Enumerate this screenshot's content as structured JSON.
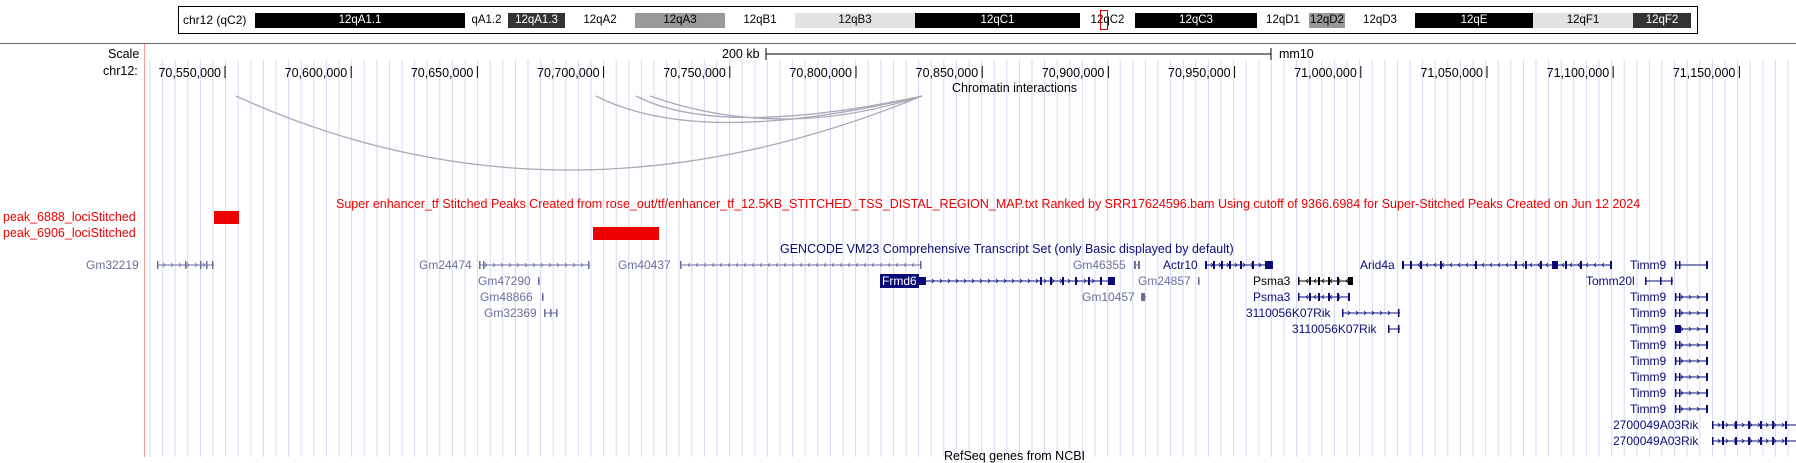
{
  "ideogram": {
    "label": "chr12 (qC2)",
    "bands": [
      {
        "name": "12qA1.1",
        "style": "black"
      },
      {
        "name": "qA1.2",
        "style": "white"
      },
      {
        "name": "12qA1.3",
        "style": "dark"
      },
      {
        "name": "12qA2",
        "style": "white"
      },
      {
        "name": "12qA3",
        "style": "gray"
      },
      {
        "name": "12qB1",
        "style": "white"
      },
      {
        "name": "12qB3",
        "style": "light"
      },
      {
        "name": "12qC1",
        "style": "black"
      },
      {
        "name": "12qC2",
        "style": "white"
      },
      {
        "name": "12qC3",
        "style": "black"
      },
      {
        "name": "12qD1",
        "style": "white"
      },
      {
        "name": "12qD2",
        "style": "gray"
      },
      {
        "name": "12qD3",
        "style": "white"
      },
      {
        "name": "12qE",
        "style": "black"
      },
      {
        "name": "12qF1",
        "style": "light"
      },
      {
        "name": "12qF2",
        "style": "dark"
      }
    ]
  },
  "ruler": {
    "scale_label": "Scale",
    "scale_value": "200 kb",
    "assembly": "mm10",
    "chrom_label": "chr12:",
    "ticks": [
      "70,550,000",
      "70,600,000",
      "70,650,000",
      "70,700,000",
      "70,750,000",
      "70,800,000",
      "70,850,000",
      "70,900,000",
      "70,950,000",
      "71,000,000",
      "71,050,000",
      "71,100,000",
      "71,150,000"
    ]
  },
  "chromatin": {
    "title": "Chromatin interactions"
  },
  "super_enhancer": {
    "title": "Super enhancer_tf Stitched Peaks Created from rose_out/tf/enhancer_tf_12.5KB_STITCHED_TSS_DISTAL_REGION_MAP.txt Ranked by SRR17624596.bam Using cutoff of 9366.6984 for Super-Stitched Peaks Created on Jun 12 2024",
    "peaks": [
      "peak_6888_lociStitched",
      "peak_6906_lociStitched"
    ],
    "color": "#ee0000"
  },
  "gencode": {
    "title": "GENCODE VM23 Comprehensive Transcript Set (only Basic displayed by default)",
    "genes": [
      "Gm32219",
      "Gm24474",
      "Gm47290",
      "Gm48866",
      "Gm32369",
      "Gm40437",
      "Frmd6",
      "Gm46355",
      "Gm24857",
      "Gm10457",
      "Actr10",
      "Psma3",
      "Psma3",
      "3110056K07Rik",
      "3110056K07Rik",
      "Arid4a",
      "Timm9",
      "Tomm20l",
      "Timm9",
      "Timm9",
      "Timm9",
      "Timm9",
      "Timm9",
      "Timm9",
      "Timm9",
      "Timm9",
      "2700049A03Rik",
      "2700049A03Rik"
    ]
  },
  "refseq": {
    "title": "RefSeq genes from NCBI"
  },
  "colors": {
    "dark_navy": "#0c0c78",
    "light_gene": "#6b6e9e",
    "red": "#ee0000",
    "grid": "#d6d9f4",
    "left_border": "#ff9999"
  }
}
